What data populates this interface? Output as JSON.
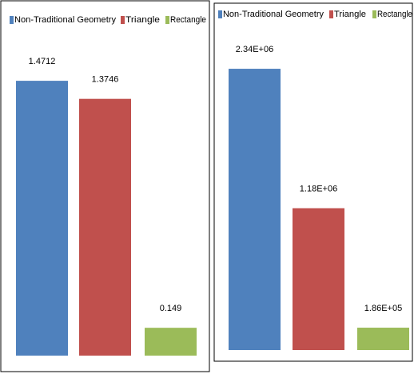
{
  "chart_data": [
    {
      "type": "bar",
      "categories": [
        null
      ],
      "ylim": [
        0,
        1.6
      ],
      "series": [
        {
          "name": "Non-Traditional Geometry",
          "color": "#4f81bd",
          "values": [
            1.4712
          ]
        },
        {
          "name": "Triangle",
          "color": "#c0504d",
          "values": [
            1.3746
          ]
        },
        {
          "name": "Rectangle",
          "color": "#9bbb59",
          "values": [
            0.149
          ]
        }
      ]
    },
    {
      "type": "bar",
      "categories": [
        null
      ],
      "ylim": [
        0,
        2500000
      ],
      "series": [
        {
          "name": "Non-Traditional Geometry",
          "color": "#4f81bd",
          "values": [
            2340000
          ],
          "value_labels": [
            "2.34E+06"
          ]
        },
        {
          "name": "Triangle",
          "color": "#c0504d",
          "values": [
            1180000
          ],
          "value_labels": [
            "1.18E+06"
          ]
        },
        {
          "name": "Rectangle",
          "color": "#9bbb59",
          "values": [
            186000
          ],
          "value_labels": [
            "1.86E+05"
          ]
        }
      ]
    }
  ]
}
